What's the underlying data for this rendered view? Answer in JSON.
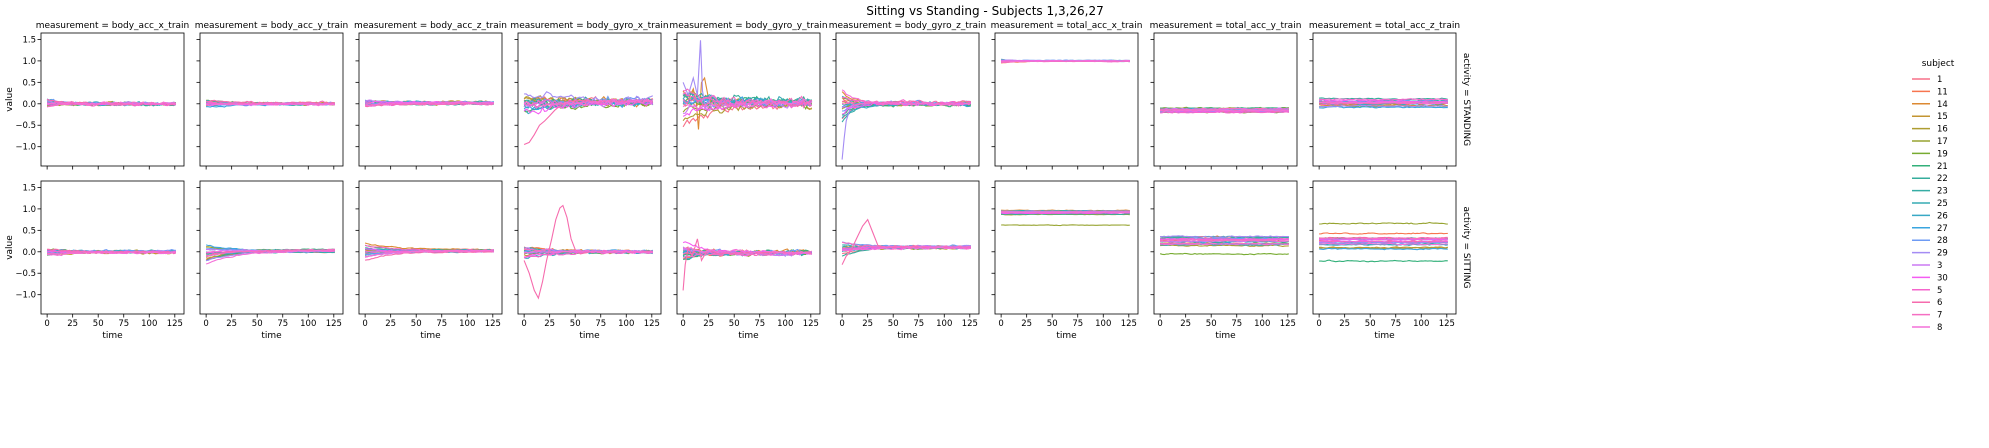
{
  "chart_data": {
    "type": "line",
    "title": "Sitting vs Standing - Subjects 1,3,26,27",
    "xlabel": "time",
    "ylabel": "value",
    "col_prefix": "measurement = ",
    "row_prefix": "activity = ",
    "columns": [
      "body_acc_x_train",
      "body_acc_y_train",
      "body_acc_z_train",
      "body_gyro_x_train",
      "body_gyro_y_train",
      "body_gyro_z_train",
      "total_acc_x_train",
      "total_acc_y_train",
      "total_acc_z_train"
    ],
    "rows": [
      "STANDING",
      "SITTING"
    ],
    "xlim": [
      -6,
      134
    ],
    "ylim": [
      -1.45,
      1.65
    ],
    "xticks": [
      0,
      25,
      50,
      75,
      100,
      125
    ],
    "yticks": [
      -1.0,
      -0.5,
      0.0,
      0.5,
      1.0,
      1.5
    ],
    "ytick_labels": [
      "−1.0",
      "−0.5",
      "0.0",
      "0.5",
      "1.0",
      "1.5"
    ],
    "legend": {
      "title": "subject",
      "placement": "right",
      "entries": [
        "1",
        "11",
        "14",
        "15",
        "16",
        "17",
        "19",
        "21",
        "22",
        "23",
        "25",
        "26",
        "27",
        "28",
        "29",
        "3",
        "30",
        "5",
        "6",
        "7",
        "8"
      ],
      "colors": [
        "#f77189",
        "#f7754f",
        "#dc8932",
        "#c39532",
        "#ae9d31",
        "#97a431",
        "#77ab31",
        "#33b07a",
        "#35ad9c",
        "#36ada4",
        "#37abb4",
        "#38a9c5",
        "#3aa5df",
        "#6e9bf4",
        "#a48cf4",
        "#cc7af4",
        "#f45cf2",
        "#f565cc",
        "#f66bad",
        "#f56fc2",
        "#f470d8"
      ]
    },
    "series_shape": [
      {
        "col": "body_acc_x_train",
        "row": "STANDING",
        "level": 0.0,
        "spread": 0.04,
        "noise": 0.04,
        "start_dev": 0.15,
        "decay": 15
      },
      {
        "col": "body_acc_y_train",
        "row": "STANDING",
        "level": 0.0,
        "spread": 0.04,
        "noise": 0.03,
        "start_dev": 0.1,
        "decay": 20
      },
      {
        "col": "body_acc_z_train",
        "row": "STANDING",
        "level": 0.02,
        "spread": 0.05,
        "noise": 0.03,
        "start_dev": 0.15,
        "decay": 35
      },
      {
        "col": "body_gyro_x_train",
        "row": "STANDING",
        "level": 0.05,
        "spread": 0.08,
        "noise": 0.1,
        "start_dev": 0.35,
        "decay": 60
      },
      {
        "col": "body_gyro_y_train",
        "row": "STANDING",
        "level": 0.02,
        "spread": 0.08,
        "noise": 0.12,
        "start_dev": 0.6,
        "decay": 30
      },
      {
        "col": "body_gyro_z_train",
        "row": "STANDING",
        "level": 0.0,
        "spread": 0.05,
        "noise": 0.05,
        "start_dev": 0.6,
        "decay": 12
      },
      {
        "col": "total_acc_x_train",
        "row": "STANDING",
        "level": 1.0,
        "spread": 0.02,
        "noise": 0.01,
        "start_dev": 0.06,
        "decay": 15
      },
      {
        "col": "total_acc_y_train",
        "row": "STANDING",
        "level": -0.14,
        "spread": 0.1,
        "noise": 0.02,
        "start_dev": 0.03,
        "decay": 30
      },
      {
        "col": "total_acc_z_train",
        "row": "STANDING",
        "level": 0.02,
        "spread": 0.17,
        "noise": 0.02,
        "start_dev": 0.05,
        "decay": 30
      },
      {
        "col": "body_acc_x_train",
        "row": "SITTING",
        "level": 0.0,
        "spread": 0.04,
        "noise": 0.03,
        "start_dev": 0.15,
        "decay": 25
      },
      {
        "col": "body_acc_y_train",
        "row": "SITTING",
        "level": 0.02,
        "spread": 0.05,
        "noise": 0.02,
        "start_dev": 0.45,
        "decay": 30
      },
      {
        "col": "body_acc_z_train",
        "row": "SITTING",
        "level": 0.02,
        "spread": 0.05,
        "noise": 0.02,
        "start_dev": 0.3,
        "decay": 25
      },
      {
        "col": "body_gyro_x_train",
        "row": "SITTING",
        "level": 0.0,
        "spread": 0.04,
        "noise": 0.04,
        "start_dev": 0.2,
        "decay": 25
      },
      {
        "col": "body_gyro_y_train",
        "row": "SITTING",
        "level": -0.02,
        "spread": 0.05,
        "noise": 0.06,
        "start_dev": 0.4,
        "decay": 20
      },
      {
        "col": "body_gyro_z_train",
        "row": "SITTING",
        "level": 0.1,
        "spread": 0.05,
        "noise": 0.03,
        "start_dev": 0.25,
        "decay": 20
      },
      {
        "col": "total_acc_x_train",
        "row": "SITTING",
        "level": 0.93,
        "spread": 0.08,
        "noise": 0.01,
        "start_dev": 0.02,
        "decay": 30
      },
      {
        "col": "total_acc_y_train",
        "row": "SITTING",
        "level": 0.25,
        "spread": 0.18,
        "noise": 0.02,
        "start_dev": 0.02,
        "decay": 30
      },
      {
        "col": "total_acc_z_train",
        "row": "SITTING",
        "level": 0.22,
        "spread": 0.25,
        "noise": 0.02,
        "start_dev": 0.02,
        "decay": 30
      }
    ],
    "highlights": [
      {
        "col": "body_gyro_x_train",
        "row": "STANDING",
        "subject": "6",
        "points": [
          [
            0,
            -0.95
          ],
          [
            5,
            -0.9
          ],
          [
            10,
            -0.72
          ],
          [
            15,
            -0.5
          ],
          [
            20,
            -0.4
          ],
          [
            25,
            -0.28
          ],
          [
            30,
            -0.15
          ],
          [
            35,
            -0.05
          ],
          [
            40,
            0.02
          ],
          [
            45,
            0.05
          ],
          [
            55,
            0.08
          ],
          [
            70,
            0.05
          ],
          [
            90,
            0.06
          ],
          [
            110,
            0.04
          ],
          [
            125,
            0.05
          ]
        ]
      },
      {
        "col": "body_gyro_x_train",
        "row": "SITTING",
        "subject": "6",
        "points": [
          [
            0,
            -0.2
          ],
          [
            5,
            -0.5
          ],
          [
            10,
            -0.9
          ],
          [
            14,
            -1.08
          ],
          [
            18,
            -0.7
          ],
          [
            22,
            -0.2
          ],
          [
            27,
            0.3
          ],
          [
            31,
            0.75
          ],
          [
            35,
            1.02
          ],
          [
            38,
            1.08
          ],
          [
            42,
            0.8
          ],
          [
            46,
            0.3
          ],
          [
            50,
            0.05
          ],
          [
            55,
            -0.05
          ],
          [
            65,
            0.0
          ],
          [
            80,
            0.02
          ],
          [
            100,
            0.0
          ],
          [
            125,
            0.02
          ]
        ]
      },
      {
        "col": "body_gyro_y_train",
        "row": "STANDING",
        "subject": "29",
        "points": [
          [
            0,
            0.5
          ],
          [
            5,
            0.2
          ],
          [
            10,
            0.6
          ],
          [
            14,
            0.2
          ],
          [
            17,
            1.48
          ],
          [
            19,
            0.3
          ],
          [
            22,
            -0.1
          ],
          [
            28,
            0.2
          ],
          [
            35,
            0.05
          ],
          [
            50,
            0.0
          ],
          [
            80,
            0.02
          ],
          [
            125,
            0.0
          ]
        ]
      },
      {
        "col": "body_gyro_y_train",
        "row": "STANDING",
        "subject": "14",
        "points": [
          [
            0,
            0.3
          ],
          [
            5,
            0.1
          ],
          [
            10,
            0.35
          ],
          [
            13,
            0.0
          ],
          [
            15,
            -0.6
          ],
          [
            18,
            0.5
          ],
          [
            21,
            0.6
          ],
          [
            25,
            0.1
          ],
          [
            32,
            -0.05
          ],
          [
            50,
            0.02
          ],
          [
            125,
            0.0
          ]
        ]
      },
      {
        "col": "body_gyro_z_train",
        "row": "STANDING",
        "subject": "29",
        "points": [
          [
            0,
            -1.3
          ],
          [
            2,
            -0.8
          ],
          [
            4,
            -0.4
          ],
          [
            8,
            -0.1
          ],
          [
            15,
            0.0
          ],
          [
            30,
            0.02
          ],
          [
            60,
            0.0
          ],
          [
            125,
            0.0
          ]
        ]
      },
      {
        "col": "body_gyro_z_train",
        "row": "SITTING",
        "subject": "6",
        "points": [
          [
            0,
            -0.3
          ],
          [
            4,
            -0.1
          ],
          [
            8,
            0.0
          ],
          [
            14,
            0.3
          ],
          [
            20,
            0.6
          ],
          [
            25,
            0.75
          ],
          [
            30,
            0.45
          ],
          [
            35,
            0.15
          ],
          [
            45,
            0.1
          ],
          [
            60,
            0.12
          ],
          [
            90,
            0.1
          ],
          [
            125,
            0.08
          ]
        ]
      },
      {
        "col": "body_gyro_y_train",
        "row": "SITTING",
        "subject": "6",
        "points": [
          [
            0,
            -0.9
          ],
          [
            2,
            -0.3
          ],
          [
            5,
            0.1
          ],
          [
            9,
            -0.1
          ],
          [
            14,
            0.3
          ],
          [
            18,
            -0.2
          ],
          [
            24,
            0.05
          ],
          [
            35,
            -0.05
          ],
          [
            60,
            -0.02
          ],
          [
            125,
            -0.02
          ]
        ]
      }
    ],
    "outliers": [
      {
        "col": "total_acc_x_train",
        "row": "SITTING",
        "subject": "17",
        "level": 0.62
      },
      {
        "col": "total_acc_z_train",
        "row": "SITTING",
        "subject": "17",
        "level": 0.66
      },
      {
        "col": "total_acc_z_train",
        "row": "SITTING",
        "subject": "21",
        "level": -0.22
      },
      {
        "col": "total_acc_y_train",
        "row": "SITTING",
        "subject": "19",
        "level": -0.05
      }
    ]
  }
}
